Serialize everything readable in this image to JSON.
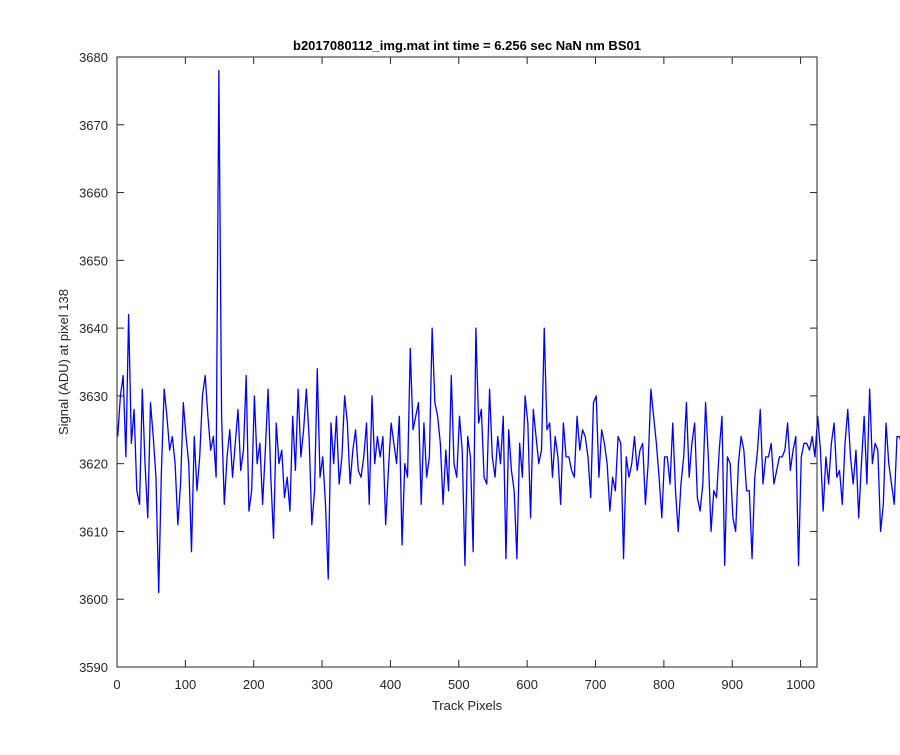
{
  "chart_data": {
    "type": "line",
    "title": "b2017080112_img.mat int time = 6.256 sec  NaN nm BS01",
    "xlabel": "Track Pixels",
    "ylabel": "Signal (ADU) at pixel 138",
    "xlim": [
      0,
      1024
    ],
    "ylim": [
      3590,
      3680
    ],
    "xticks": [
      0,
      100,
      200,
      300,
      400,
      500,
      600,
      700,
      800,
      900,
      1000
    ],
    "yticks": [
      3590,
      3600,
      3610,
      3620,
      3630,
      3640,
      3650,
      3660,
      3670,
      3680
    ],
    "grid": false,
    "series": [
      {
        "color": "#0000ff",
        "x_start": 1,
        "x_step": 4,
        "values": [
          3624,
          3630,
          3633,
          3621,
          3642,
          3623,
          3628,
          3616,
          3614,
          3631,
          3620,
          3612,
          3629,
          3624,
          3618,
          3601,
          3619,
          3631,
          3627,
          3622,
          3624,
          3620,
          3611,
          3617,
          3629,
          3624,
          3620,
          3607,
          3624,
          3616,
          3621,
          3630,
          3633,
          3627,
          3622,
          3624,
          3618,
          3678,
          3627,
          3614,
          3621,
          3625,
          3618,
          3623,
          3628,
          3619,
          3622,
          3633,
          3613,
          3616,
          3630,
          3620,
          3623,
          3614,
          3622,
          3631,
          3618,
          3609,
          3626,
          3620,
          3622,
          3615,
          3618,
          3613,
          3627,
          3619,
          3631,
          3621,
          3625,
          3631,
          3624,
          3611,
          3616,
          3634,
          3618,
          3621,
          3614,
          3603,
          3626,
          3620,
          3627,
          3617,
          3621,
          3630,
          3626,
          3617,
          3622,
          3625,
          3619,
          3618,
          3621,
          3626,
          3614,
          3630,
          3620,
          3624,
          3621,
          3624,
          3611,
          3619,
          3626,
          3623,
          3620,
          3627,
          3608,
          3620,
          3618,
          3637,
          3625,
          3627,
          3629,
          3614,
          3626,
          3618,
          3621,
          3640,
          3629,
          3627,
          3623,
          3614,
          3622,
          3616,
          3633,
          3620,
          3618,
          3627,
          3622,
          3605,
          3624,
          3621,
          3607,
          3640,
          3626,
          3628,
          3618,
          3617,
          3631,
          3621,
          3618,
          3624,
          3620,
          3627,
          3606,
          3625,
          3619,
          3616,
          3606,
          3623,
          3618,
          3630,
          3626,
          3612,
          3628,
          3624,
          3620,
          3622,
          3640,
          3625,
          3626,
          3618,
          3624,
          3621,
          3614,
          3626,
          3621,
          3621,
          3619,
          3618,
          3627,
          3622,
          3625,
          3624,
          3621,
          3615,
          3629,
          3630,
          3618,
          3625,
          3623,
          3620,
          3613,
          3618,
          3616,
          3624,
          3623,
          3606,
          3621,
          3618,
          3620,
          3624,
          3619,
          3622,
          3623,
          3614,
          3620,
          3631,
          3627,
          3623,
          3618,
          3612,
          3621,
          3621,
          3617,
          3626,
          3616,
          3610,
          3617,
          3621,
          3629,
          3618,
          3623,
          3626,
          3615,
          3613,
          3617,
          3629,
          3621,
          3610,
          3616,
          3615,
          3622,
          3627,
          3605,
          3621,
          3620,
          3612,
          3610,
          3620,
          3624,
          3622,
          3616,
          3616,
          3606,
          3618,
          3622,
          3628,
          3617,
          3621,
          3621,
          3623,
          3617,
          3619,
          3621,
          3621,
          3622,
          3626,
          3619,
          3622,
          3624,
          3605,
          3621,
          3623,
          3623,
          3622,
          3624,
          3621,
          3627,
          3622,
          3613,
          3621,
          3617,
          3623,
          3626,
          3618,
          3619,
          3614,
          3623,
          3628,
          3621,
          3617,
          3622,
          3612,
          3620,
          3627,
          3617,
          3631,
          3620,
          3623,
          3622,
          3610,
          3614,
          3626,
          3620,
          3617,
          3614,
          3624,
          3624,
          3622
        ]
      }
    ]
  }
}
